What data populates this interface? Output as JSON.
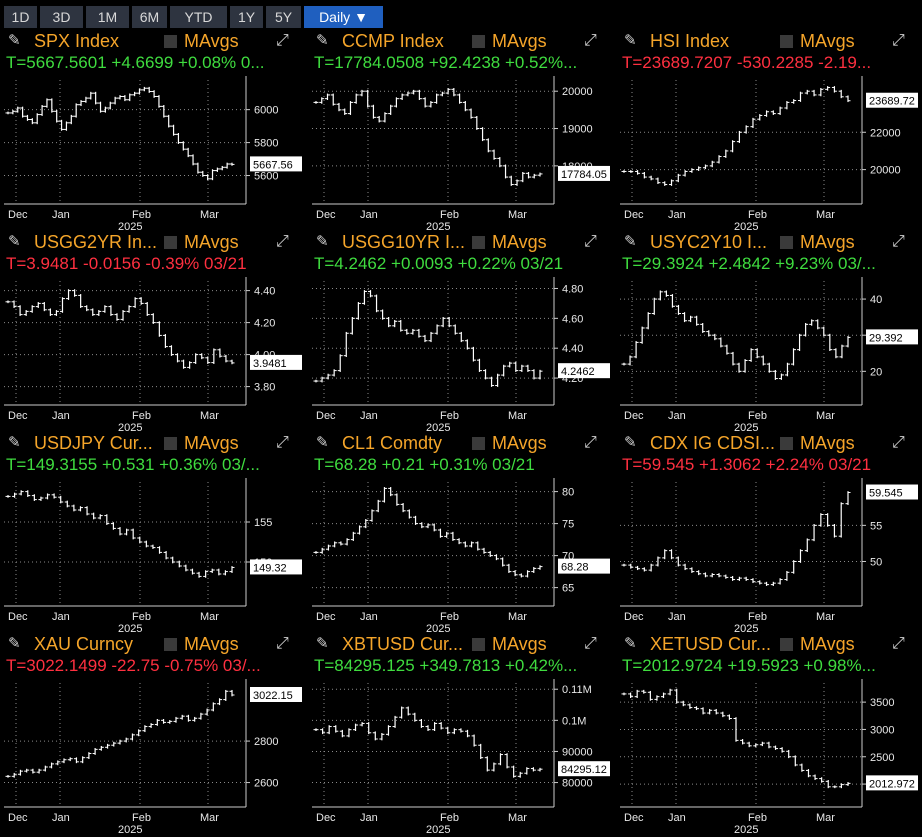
{
  "tabs": [
    {
      "label": "1D",
      "active": false
    },
    {
      "label": "3D",
      "active": false
    },
    {
      "label": "1M",
      "active": false
    },
    {
      "label": "6M",
      "active": false
    },
    {
      "label": "YTD",
      "active": false
    },
    {
      "label": "1Y",
      "active": false
    },
    {
      "label": "5Y",
      "active": false
    },
    {
      "label": "Daily ▼",
      "active": true
    }
  ],
  "colors": {
    "title": "#f5a52a",
    "up": "#3fdc3f",
    "down": "#ff3040",
    "active_tab": "#1f5fbf"
  },
  "panels": [
    {
      "title": "SPX Index",
      "mavg": "MAvgs",
      "quote": "T=5667.5601 +4.6699 +0.08% 0...",
      "direction": "up",
      "last_label": "5667.56",
      "yticks": [
        "6000",
        "5800",
        "5600"
      ],
      "ymin": 5500,
      "ymax": 6180,
      "xticks": [
        "Dec",
        "Jan",
        "Feb",
        "Mar"
      ],
      "year": "2025",
      "chart_data": {
        "type": "ohlc",
        "values": [
          5980,
          5990,
          6010,
          5960,
          5940,
          5920,
          5970,
          6020,
          6060,
          5990,
          5930,
          5880,
          5920,
          5960,
          6030,
          6050,
          6070,
          6100,
          6040,
          5990,
          6010,
          6040,
          6070,
          6080,
          6060,
          6090,
          6100,
          6120,
          6130,
          6110,
          6080,
          6020,
          5960,
          5900,
          5850,
          5800,
          5760,
          5720,
          5670,
          5620,
          5600,
          5580,
          5630,
          5640,
          5650,
          5670,
          5667.56
        ]
      }
    },
    {
      "title": "CCMP Index",
      "mavg": "MAvgs",
      "quote": "T=17784.0508 +92.4238 +0.52%...",
      "direction": "up",
      "last_label": "17784.05",
      "yticks": [
        "20000",
        "19000",
        "18000"
      ],
      "ymin": 17300,
      "ymax": 20300,
      "xticks": [
        "Dec",
        "Jan",
        "Feb",
        "Mar"
      ],
      "year": "2025",
      "chart_data": {
        "type": "ohlc",
        "values": [
          19700,
          19800,
          19900,
          19650,
          19500,
          19400,
          19700,
          19900,
          20000,
          19600,
          19300,
          19200,
          19400,
          19600,
          19800,
          19900,
          19950,
          20000,
          19800,
          19600,
          19700,
          19900,
          19950,
          20050,
          19900,
          19700,
          19500,
          19300,
          19000,
          18700,
          18400,
          18200,
          18000,
          17700,
          17500,
          17600,
          17800,
          17700,
          17750,
          17784
        ]
      }
    },
    {
      "title": "HSI Index",
      "mavg": "MAvgs",
      "quote": "T=23689.7207 -530.2285 -2.19...",
      "direction": "down",
      "last_label": "23689.72",
      "yticks": [
        "22000",
        "20000"
      ],
      "ymin": 18800,
      "ymax": 24800,
      "xticks": [
        "Dec",
        "Jan",
        "Feb",
        "Mar"
      ],
      "year": "2025",
      "chart_data": {
        "type": "ohlc",
        "values": [
          19900,
          19900,
          19800,
          19600,
          19500,
          19300,
          19200,
          19400,
          19700,
          19900,
          20000,
          20100,
          20200,
          20400,
          20700,
          21000,
          21500,
          22000,
          22300,
          22700,
          22900,
          23100,
          23000,
          23300,
          23600,
          23700,
          24100,
          24200,
          24000,
          24300,
          24400,
          24200,
          23900,
          23689.72
        ]
      }
    },
    {
      "title": "USGG2YR In...",
      "mavg": "MAvgs",
      "quote": "T=3.9481 -0.0156 -0.39% 03/21",
      "direction": "down",
      "last_label": "3.9481",
      "yticks": [
        "4.40",
        "4.20",
        "4.00",
        "3.80"
      ],
      "ymin": 3.76,
      "ymax": 4.46,
      "xticks": [
        "Dec",
        "Jan",
        "Feb",
        "Mar"
      ],
      "year": "2025",
      "chart_data": {
        "type": "ohlc",
        "values": [
          4.33,
          4.3,
          4.25,
          4.27,
          4.3,
          4.32,
          4.28,
          4.25,
          4.27,
          4.35,
          4.4,
          4.37,
          4.3,
          4.28,
          4.25,
          4.27,
          4.3,
          4.25,
          4.22,
          4.27,
          4.3,
          4.35,
          4.32,
          4.25,
          4.2,
          4.12,
          4.05,
          4.0,
          3.96,
          3.92,
          3.95,
          4.0,
          3.98,
          3.95,
          4.03,
          3.99,
          3.96,
          3.9481
        ]
      }
    },
    {
      "title": "USGG10YR I...",
      "mavg": "MAvgs",
      "quote": "T=4.2462 +0.0093 +0.22% 03/21",
      "direction": "up",
      "last_label": "4.2462",
      "yticks": [
        "4.80",
        "4.60",
        "4.40",
        "4.20"
      ],
      "ymin": 4.1,
      "ymax": 4.85,
      "xticks": [
        "Dec",
        "Jan",
        "Feb",
        "Mar"
      ],
      "year": "2025",
      "chart_data": {
        "type": "ohlc",
        "values": [
          4.18,
          4.2,
          4.22,
          4.25,
          4.35,
          4.5,
          4.6,
          4.7,
          4.78,
          4.75,
          4.65,
          4.6,
          4.55,
          4.58,
          4.52,
          4.5,
          4.52,
          4.48,
          4.45,
          4.5,
          4.55,
          4.6,
          4.55,
          4.5,
          4.45,
          4.4,
          4.32,
          4.25,
          4.2,
          4.15,
          4.22,
          4.28,
          4.3,
          4.25,
          4.28,
          4.25,
          4.2,
          4.2462
        ]
      }
    },
    {
      "title": "USYC2Y10 I...",
      "mavg": "MAvgs",
      "quote": "T=29.3924 +2.4842 +9.23% 03/...",
      "direction": "up",
      "last_label": "29.392",
      "yticks": [
        "40",
        "30",
        "20"
      ],
      "ymin": 14,
      "ymax": 45,
      "xticks": [
        "Dec",
        "Jan",
        "Feb",
        "Mar"
      ],
      "year": "2025",
      "chart_data": {
        "type": "ohlc",
        "values": [
          22,
          24,
          28,
          32,
          36,
          40,
          42,
          41,
          38,
          36,
          34,
          35,
          33,
          31,
          30,
          29,
          27,
          25,
          22,
          20,
          23,
          26,
          24,
          22,
          20,
          18,
          19,
          22,
          26,
          30,
          33,
          34,
          32,
          30,
          26,
          24,
          27,
          29.392
        ]
      }
    },
    {
      "title": "USDJPY Cur...",
      "mavg": "MAvgs",
      "quote": "T=149.3155 +0.531 +0.36% 03/...",
      "direction": "up",
      "last_label": "149.32",
      "yticks": [
        "155",
        "150"
      ],
      "ymin": 146,
      "ymax": 160,
      "xticks": [
        "Dec",
        "Jan",
        "Feb",
        "Mar"
      ],
      "year": "2025",
      "chart_data": {
        "type": "ohlc",
        "values": [
          158.2,
          158.5,
          158.8,
          158.3,
          157.8,
          158.0,
          158.4,
          158.1,
          157.5,
          157.0,
          156.5,
          156.8,
          156.0,
          155.5,
          155.8,
          154.8,
          154.2,
          153.5,
          154.0,
          153.0,
          152.5,
          152.0,
          151.8,
          151.2,
          150.5,
          150.0,
          149.5,
          149.0,
          148.6,
          148.2,
          148.8,
          149.0,
          148.5,
          148.8,
          149.32
        ]
      }
    },
    {
      "title": "CL1 Comdty",
      "mavg": "MAvgs",
      "quote": "T=68.28 +0.21 +0.31% 03/21",
      "direction": "up",
      "last_label": "68.28",
      "yticks": [
        "80",
        "75",
        "70",
        "65"
      ],
      "ymin": 64,
      "ymax": 81.5,
      "xticks": [
        "Dec",
        "Jan",
        "Feb",
        "Mar"
      ],
      "year": "2025",
      "chart_data": {
        "type": "ohlc",
        "values": [
          70.5,
          71.0,
          71.5,
          72.0,
          71.8,
          72.5,
          73.5,
          74.5,
          75.5,
          77.0,
          78.5,
          80.5,
          79.5,
          78.0,
          77.0,
          76.0,
          75.0,
          74.5,
          74.8,
          74.0,
          73.0,
          73.5,
          72.5,
          72.0,
          71.5,
          72.0,
          71.0,
          70.5,
          70.0,
          69.5,
          68.5,
          67.5,
          67.0,
          66.8,
          67.5,
          68.0,
          68.28
        ]
      }
    },
    {
      "title": "CDX IG CDSI...",
      "mavg": "MAvgs",
      "quote": "T=59.545 +1.3062 +2.24% 03/21",
      "direction": "down",
      "last_label": "59.545",
      "yticks": [
        "55",
        "50"
      ],
      "ymin": 45.5,
      "ymax": 61,
      "xticks": [
        "Dec",
        "Jan",
        "Feb",
        "Mar"
      ],
      "year": "2025",
      "chart_data": {
        "type": "ohlc",
        "values": [
          49.5,
          49.2,
          49.0,
          48.8,
          49.5,
          50.5,
          51.5,
          50.5,
          49.5,
          49.0,
          48.6,
          48.3,
          48.0,
          48.2,
          48.0,
          47.8,
          47.5,
          47.7,
          47.5,
          47.2,
          47.0,
          46.8,
          47.0,
          47.5,
          48.5,
          50.0,
          51.5,
          53.0,
          55.0,
          56.5,
          55.0,
          53.5,
          58.0,
          59.545
        ]
      }
    },
    {
      "title": "XAU Curncy",
      "mavg": "MAvgs",
      "quote": "T=3022.1499 -22.75 -0.75% 03/...",
      "direction": "down",
      "last_label": "3022.15",
      "yticks": [
        "2800",
        "2600"
      ],
      "ymin": 2540,
      "ymax": 3080,
      "xticks": [
        "Dec",
        "Jan",
        "Feb",
        "Mar"
      ],
      "year": "2025",
      "chart_data": {
        "type": "ohlc",
        "values": [
          2630,
          2640,
          2655,
          2660,
          2650,
          2660,
          2675,
          2690,
          2700,
          2710,
          2715,
          2700,
          2720,
          2740,
          2760,
          2770,
          2780,
          2790,
          2800,
          2810,
          2830,
          2850,
          2870,
          2880,
          2900,
          2890,
          2895,
          2910,
          2920,
          2900,
          2910,
          2930,
          2950,
          2980,
          3000,
          3040,
          3022.15
        ]
      }
    },
    {
      "title": "XBTUSD Cur...",
      "mavg": "MAvgs",
      "quote": "T=84295.125 +349.7813 +0.42%...",
      "direction": "up",
      "last_label": "84295.12",
      "yticks": [
        "0.11M",
        "0.1M",
        "90000",
        "80000"
      ],
      "ymin": 76000,
      "ymax": 112000,
      "xticks": [
        "Dec",
        "Jan",
        "Feb",
        "Mar"
      ],
      "year": "2025",
      "chart_data": {
        "type": "ohlc",
        "values": [
          97000,
          96000,
          98000,
          96500,
          95000,
          97000,
          98500,
          99000,
          96000,
          94000,
          95500,
          98000,
          101000,
          104000,
          102000,
          100000,
          98000,
          97000,
          99000,
          97500,
          96000,
          97000,
          96500,
          95000,
          92000,
          88000,
          84000,
          86000,
          89000,
          85000,
          82000,
          83000,
          84500,
          84000,
          84295
        ]
      }
    },
    {
      "title": "XETUSD Cur...",
      "mavg": "MAvgs",
      "quote": "T=2012.9724 +19.5923 +0.98%...",
      "direction": "up",
      "last_label": "2012.972",
      "yticks": [
        "3500",
        "3000",
        "2500",
        "2000"
      ],
      "ymin": 1800,
      "ymax": 3850,
      "xticks": [
        "Dec",
        "Jan",
        "Feb",
        "Mar"
      ],
      "year": "2025",
      "chart_data": {
        "type": "ohlc",
        "values": [
          3650,
          3600,
          3700,
          3680,
          3550,
          3600,
          3650,
          3720,
          3500,
          3450,
          3400,
          3380,
          3300,
          3350,
          3300,
          3250,
          3200,
          2800,
          2750,
          2700,
          2720,
          2750,
          2680,
          2650,
          2600,
          2500,
          2350,
          2250,
          2150,
          2100,
          2050,
          1950,
          1950,
          1990,
          2013
        ]
      }
    }
  ]
}
